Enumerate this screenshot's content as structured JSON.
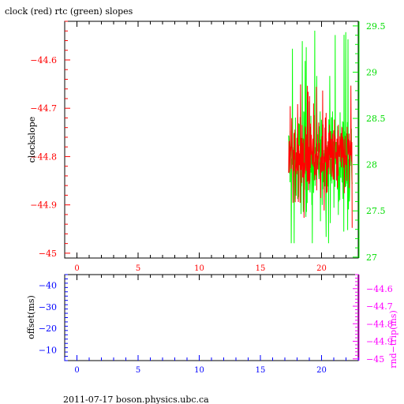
{
  "title": "clock (red) rtc (green) slopes",
  "footer": "2011-07-17 boson.physics.ubc.ca",
  "colors": {
    "clock": "#ff0000",
    "rtc": "#00ff00",
    "rtc_axis": "#00dd00",
    "lower_left_axis": "#0000ff",
    "lower_right_axis": "#ff00ff",
    "axes": "#000000"
  },
  "chart_data": [
    {
      "type": "line",
      "title": "clock (red) rtc (green) slopes",
      "ylabel": "clockslope",
      "xlim": [
        -1,
        23
      ],
      "x_ticks": [
        0,
        5,
        10,
        15,
        20
      ],
      "x_tick_labels": [
        "0",
        "5",
        "10",
        "15",
        "20"
      ],
      "ylim_left": [
        -45.01,
        -44.52
      ],
      "y_left_ticks": [
        -44.6,
        -44.7,
        -44.8,
        -44.9,
        -45
      ],
      "y_left_tick_labels": [
        "−44.6",
        "−44.7",
        "−44.8",
        "−44.9",
        "−45"
      ],
      "ylim_right": [
        26.99,
        29.55
      ],
      "y_right_ticks": [
        29.5,
        29,
        28.5,
        28,
        27.5,
        27
      ],
      "y_right_tick_labels": [
        "29.5",
        "29",
        "28.5",
        "28",
        "27.5",
        "27"
      ],
      "grid": false,
      "series": [
        {
          "name": "rtc",
          "axis": "right",
          "x_range": [
            17.3,
            22.5
          ],
          "y_center": 28.05,
          "y_spread": 0.35,
          "y_min": 27.15,
          "y_max": 29.45
        },
        {
          "name": "clock",
          "axis": "left",
          "x_range": [
            17.3,
            22.5
          ],
          "y_center": -44.8,
          "y_spread": 0.05,
          "y_min": -44.99,
          "y_max": -44.65
        }
      ]
    },
    {
      "type": "line",
      "ylabel": "offset(ms)",
      "ylabel_right": "rnd−trip(ms)",
      "xlim": [
        -1,
        23
      ],
      "x_ticks": [
        0,
        5,
        10,
        15,
        20
      ],
      "x_tick_labels": [
        "0",
        "5",
        "10",
        "15",
        "20"
      ],
      "ylim_left": [
        -5,
        -45
      ],
      "y_left_ticks": [
        -40,
        -30,
        -20,
        -10
      ],
      "y_left_tick_labels": [
        "−40",
        "−30",
        "−20",
        "−10"
      ],
      "y_right_ticks": [
        -44.6,
        -44.7,
        -44.8,
        -44.9,
        -45
      ],
      "y_right_tick_labels": [
        "−44.6",
        "−44.7",
        "−44.8",
        "−44.9",
        "−45"
      ],
      "grid": false,
      "series": []
    }
  ]
}
